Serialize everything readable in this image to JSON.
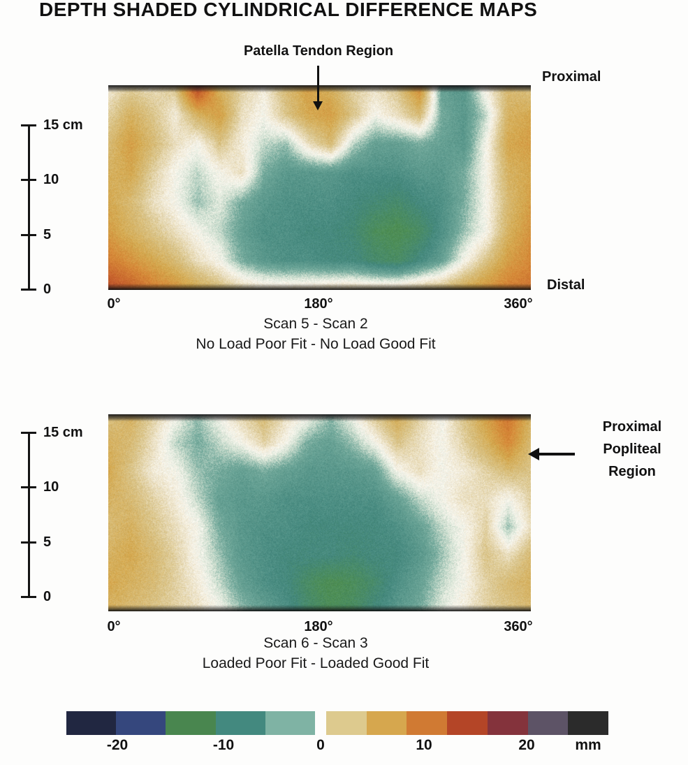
{
  "title": "DEPTH SHADED CYLINDRICAL DIFFERENCE MAPS",
  "annotations": {
    "patella_tendon": "Patella Tendon Region",
    "proximal": "Proximal",
    "distal": "Distal",
    "popliteal": [
      "Proximal",
      "Popliteal",
      "Region"
    ]
  },
  "chart_data": {
    "type": "heatmap",
    "unit": "mm",
    "colormap_stops": [
      [
        -26,
        "#1e2236"
      ],
      [
        -19,
        "#35507e"
      ],
      [
        -13,
        "#4f8f52"
      ],
      [
        -8,
        "#44887e"
      ],
      [
        -4,
        "#71a89a"
      ],
      [
        -1.5,
        "#d7e4d5"
      ],
      [
        0,
        "#f8f6ee"
      ],
      [
        1.5,
        "#eee5cd"
      ],
      [
        4,
        "#d9c387"
      ],
      [
        7,
        "#d4a94f"
      ],
      [
        10,
        "#d68938"
      ],
      [
        14,
        "#c65f2c"
      ],
      [
        18,
        "#a03a2e"
      ],
      [
        21,
        "#7c3a4a"
      ],
      [
        24,
        "#4c4452"
      ],
      [
        26,
        "#262626"
      ]
    ],
    "maps": [
      {
        "caption_line1": "Scan 5 - Scan 2",
        "caption_line2": "No Load Poor Fit - No Load Good Fit",
        "x_ticks": [
          "0°",
          "180°",
          "360°"
        ],
        "y_ticks": [
          "15 cm",
          "10",
          "5",
          "0"
        ],
        "x_range_deg": [
          0,
          360
        ],
        "y_range_cm": [
          0,
          15
        ],
        "edge_bands": {
          "top": true,
          "bottom": true
        },
        "grid_values_mm": [
          [
            1,
            3,
            2,
            4,
            17,
            6,
            3,
            1,
            5,
            8,
            6,
            3,
            2,
            4,
            10,
            -5,
            -6,
            1,
            5,
            4
          ],
          [
            3,
            6,
            4,
            1,
            6,
            8,
            2,
            0,
            4,
            7,
            8,
            4,
            0,
            2,
            5,
            -4,
            -6,
            -2,
            6,
            7
          ],
          [
            5,
            8,
            5,
            2,
            0,
            4,
            1,
            -2,
            -3,
            2,
            5,
            -2,
            -5,
            -5,
            -4,
            -5,
            -6,
            0,
            7,
            8
          ],
          [
            6,
            7,
            3,
            0,
            -2,
            0,
            2,
            -4,
            -6,
            -6,
            -6,
            -7,
            -7,
            -7,
            -6,
            -6,
            -4,
            0,
            6,
            7
          ],
          [
            7,
            5,
            2,
            0,
            -3,
            -1,
            -4,
            -6,
            -7,
            -7,
            -7,
            -8,
            -9,
            -10,
            -8,
            -7,
            -4,
            0,
            5,
            8
          ],
          [
            8,
            6,
            4,
            2,
            0,
            -2,
            -5,
            -7,
            -7,
            -8,
            -8,
            -9,
            -12,
            -13,
            -11,
            -7,
            -3,
            0,
            6,
            9
          ],
          [
            11,
            9,
            7,
            5,
            2,
            0,
            -4,
            -6,
            -7,
            -7,
            -8,
            -8,
            -10,
            -11,
            -8,
            -5,
            0,
            4,
            8,
            10
          ],
          [
            16,
            14,
            11,
            9,
            7,
            5,
            3,
            2,
            2,
            2,
            3,
            3,
            3,
            3,
            4,
            5,
            7,
            9,
            11,
            12
          ]
        ]
      },
      {
        "caption_line1": "Scan 6 - Scan 3",
        "caption_line2": "Loaded Poor Fit - Loaded Good Fit",
        "x_ticks": [
          "0°",
          "180°",
          "360°"
        ],
        "y_ticks": [
          "15 cm",
          "10",
          "5",
          "0"
        ],
        "x_range_deg": [
          0,
          360
        ],
        "y_range_cm": [
          0,
          15
        ],
        "edge_bands": {
          "top": true,
          "bottom": true
        },
        "grid_values_mm": [
          [
            4,
            6,
            3,
            0,
            -3,
            0,
            3,
            5,
            2,
            0,
            -3,
            0,
            4,
            7,
            3,
            0,
            4,
            8,
            12,
            6
          ],
          [
            6,
            5,
            2,
            -2,
            -4,
            -2,
            0,
            3,
            0,
            -4,
            -5,
            -3,
            0,
            4,
            2,
            0,
            3,
            6,
            10,
            5
          ],
          [
            7,
            4,
            1,
            0,
            -3,
            -4,
            -5,
            -4,
            -5,
            -6,
            -6,
            -6,
            -5,
            0,
            2,
            0,
            1,
            3,
            5,
            4
          ],
          [
            6,
            5,
            3,
            1,
            -2,
            -5,
            -6,
            -6,
            -7,
            -7,
            -7,
            -7,
            -7,
            -5,
            -2,
            0,
            2,
            2,
            0,
            3
          ],
          [
            5,
            6,
            4,
            2,
            0,
            -4,
            -6,
            -7,
            -7,
            -8,
            -8,
            -8,
            -8,
            -7,
            -5,
            -2,
            0,
            3,
            -3,
            2
          ],
          [
            6,
            7,
            5,
            3,
            0,
            -3,
            -6,
            -7,
            -8,
            -8,
            -8,
            -9,
            -8,
            -8,
            -6,
            -3,
            0,
            4,
            2,
            5
          ],
          [
            7,
            6,
            5,
            3,
            1,
            -2,
            -5,
            -7,
            -8,
            -11,
            -13,
            -12,
            -10,
            -7,
            -5,
            -2,
            0,
            3,
            5,
            6
          ],
          [
            6,
            5,
            4,
            3,
            2,
            0,
            -3,
            -5,
            -7,
            -10,
            -12,
            -11,
            -8,
            -6,
            -4,
            -1,
            1,
            3,
            4,
            5
          ]
        ]
      }
    ],
    "colorbar": {
      "ticks": [
        "-20",
        "-10",
        "0",
        "10",
        "20"
      ],
      "unit_label": "mm",
      "left_segments": [
        "#212741",
        "#35477d",
        "#49864f",
        "#43897f",
        "#7fb3a4"
      ],
      "right_segments": [
        "#ddca8e",
        "#d6a74e",
        "#d07a33",
        "#b44527",
        "#84333c",
        "#5d5366",
        "#2b2b2b"
      ]
    }
  }
}
